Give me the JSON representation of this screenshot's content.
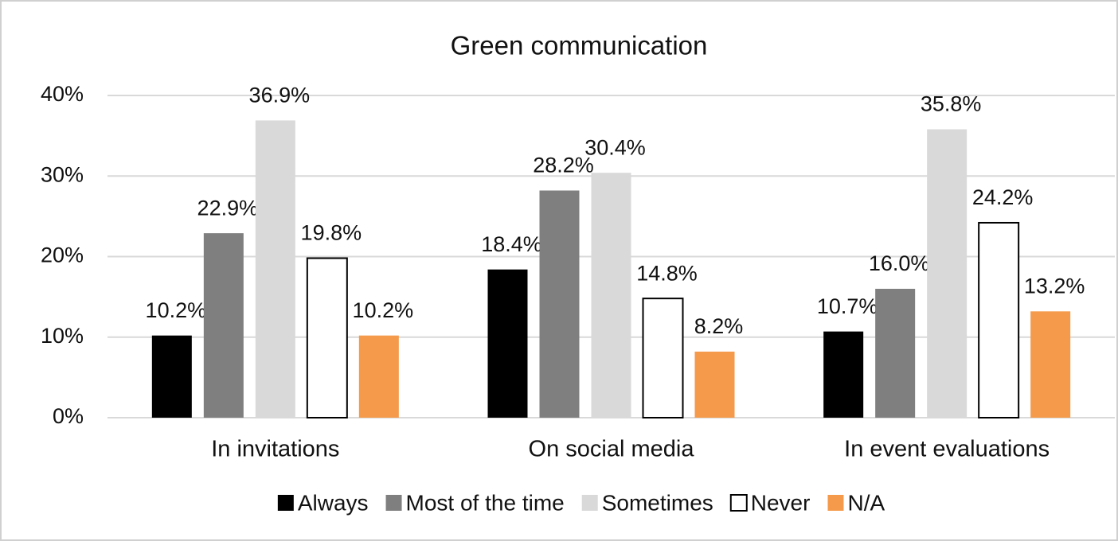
{
  "chart_data": {
    "type": "bar",
    "title": "Green communication",
    "categories": [
      "In invitations",
      "On social media",
      "In event evaluations"
    ],
    "series": [
      {
        "name": "Always",
        "color": "#000000",
        "values": [
          10.2,
          18.4,
          10.7
        ],
        "value_labels": [
          "10.2%",
          "18.4%",
          "10.7%"
        ]
      },
      {
        "name": "Most of the time",
        "color": "#7f7f7f",
        "values": [
          22.9,
          28.2,
          16.0
        ],
        "value_labels": [
          "22.9%",
          "28.2%",
          "16.0%"
        ]
      },
      {
        "name": "Sometimes",
        "color": "#d9d9d9",
        "values": [
          36.9,
          30.4,
          35.8
        ],
        "value_labels": [
          "36.9%",
          "30.4%",
          "35.8%"
        ]
      },
      {
        "name": "Never",
        "color": "#ffffff",
        "edgecolor": "#000000",
        "values": [
          19.8,
          14.8,
          24.2
        ],
        "value_labels": [
          "19.8%",
          "14.8%",
          "24.2%"
        ]
      },
      {
        "name": "N/A",
        "color": "#f59a4a",
        "values": [
          10.2,
          8.2,
          13.2
        ],
        "value_labels": [
          "10.2%",
          "8.2%",
          "13.2%"
        ]
      }
    ],
    "ylim": [
      0,
      40
    ],
    "yticks": [
      {
        "value": 0,
        "label": "0%"
      },
      {
        "value": 10,
        "label": "10%"
      },
      {
        "value": 20,
        "label": "20%"
      },
      {
        "value": 30,
        "label": "30%"
      },
      {
        "value": 40,
        "label": "40%"
      }
    ],
    "grid": true,
    "legend": "bottom"
  }
}
